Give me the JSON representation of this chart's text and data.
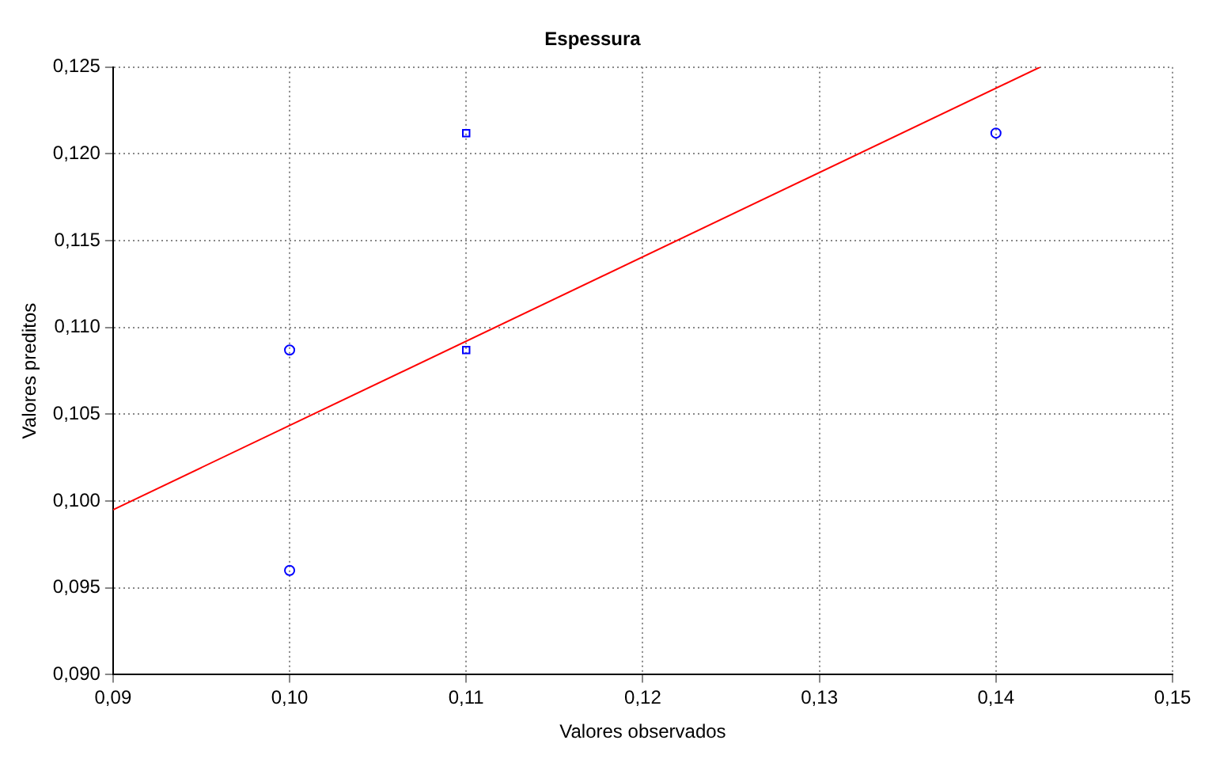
{
  "chart_data": {
    "type": "scatter",
    "title": "Espessura",
    "xlabel": "Valores observados",
    "ylabel": "Valores preditos",
    "series": [
      {
        "type": "scatter",
        "color": "#0000ff",
        "marker": "circle",
        "x": [
          0.1,
          0.1,
          0.14
        ],
        "values": [
          0.1087,
          0.096,
          0.1212
        ]
      },
      {
        "type": "scatter",
        "color": "#0000ff",
        "marker": "square",
        "x": [
          0.11,
          0.11
        ],
        "values": [
          0.1212,
          0.1087
        ]
      },
      {
        "type": "line",
        "color": "#ff0000",
        "marker": "none",
        "line_style": "solid",
        "x": [
          0.09,
          0.1425
        ],
        "values": [
          0.0995,
          0.125
        ]
      }
    ],
    "xlim": [
      0.09,
      0.15
    ],
    "xticks": [
      {
        "value": 0.09,
        "label": "0,09"
      },
      {
        "value": 0.1,
        "label": "0,10"
      },
      {
        "value": 0.11,
        "label": "0,11"
      },
      {
        "value": 0.12,
        "label": "0,12"
      },
      {
        "value": 0.13,
        "label": "0,13"
      },
      {
        "value": 0.14,
        "label": "0,14"
      },
      {
        "value": 0.15,
        "label": "0,15"
      }
    ],
    "ylim": [
      0.09,
      0.125
    ],
    "yticks": [
      {
        "value": 0.09,
        "label": "0,090"
      },
      {
        "value": 0.095,
        "label": "0,095"
      },
      {
        "value": 0.1,
        "label": "0,100"
      },
      {
        "value": 0.105,
        "label": "0,105"
      },
      {
        "value": 0.11,
        "label": "0,110"
      },
      {
        "value": 0.115,
        "label": "0,115"
      },
      {
        "value": 0.12,
        "label": "0,120"
      },
      {
        "value": 0.125,
        "label": "0,125"
      }
    ],
    "grid": true
  }
}
